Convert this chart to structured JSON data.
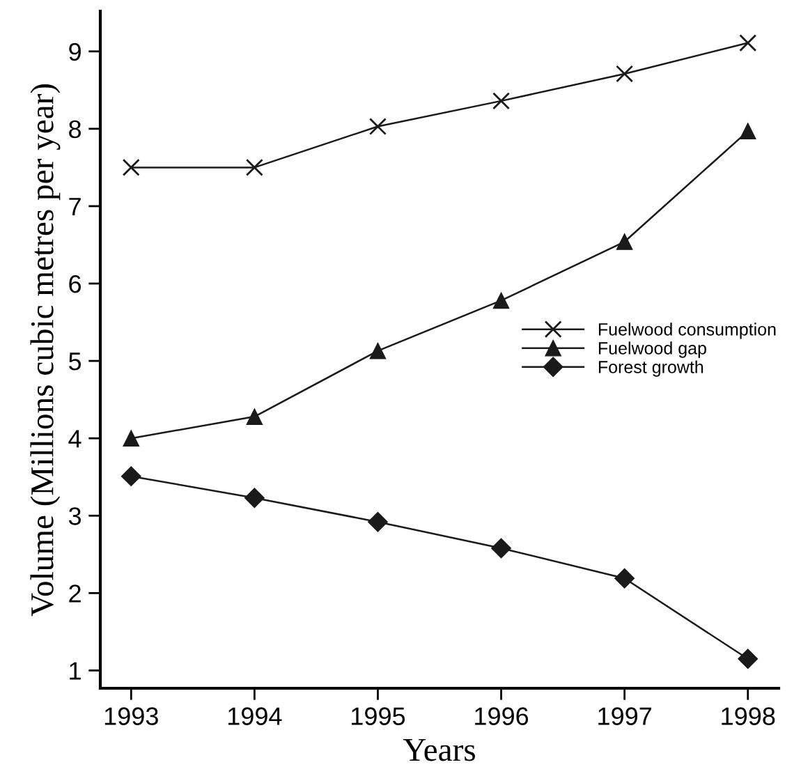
{
  "chart_data": {
    "type": "line",
    "xlabel": "Years",
    "ylabel": "Volume (Millions cubic metres per year)",
    "x": [
      1993,
      1994,
      1995,
      1996,
      1997,
      1998
    ],
    "xlim": [
      1992.75,
      1998.25
    ],
    "xticks": [
      1993,
      1994,
      1995,
      1996,
      1997,
      1998
    ],
    "ylim": [
      0.77,
      9.52
    ],
    "yticks": [
      1,
      2,
      3,
      4,
      5,
      6,
      7,
      8,
      9
    ],
    "grid": false,
    "legend": "right",
    "line_style": "solid",
    "series": [
      {
        "name": "Fuelwood consumption",
        "color": "#1a1a1a",
        "marker": "cross",
        "values": [
          7.5,
          7.5,
          8.03,
          8.36,
          8.71,
          9.11
        ]
      },
      {
        "name": "Fuelwood gap",
        "color": "#1a1a1a",
        "marker": "triangle",
        "values": [
          4.0,
          4.28,
          5.13,
          5.78,
          6.54,
          7.97
        ]
      },
      {
        "name": "Forest growth",
        "color": "#1a1a1a",
        "marker": "diamond",
        "values": [
          3.51,
          3.23,
          2.92,
          2.58,
          2.19,
          1.15
        ]
      }
    ]
  }
}
